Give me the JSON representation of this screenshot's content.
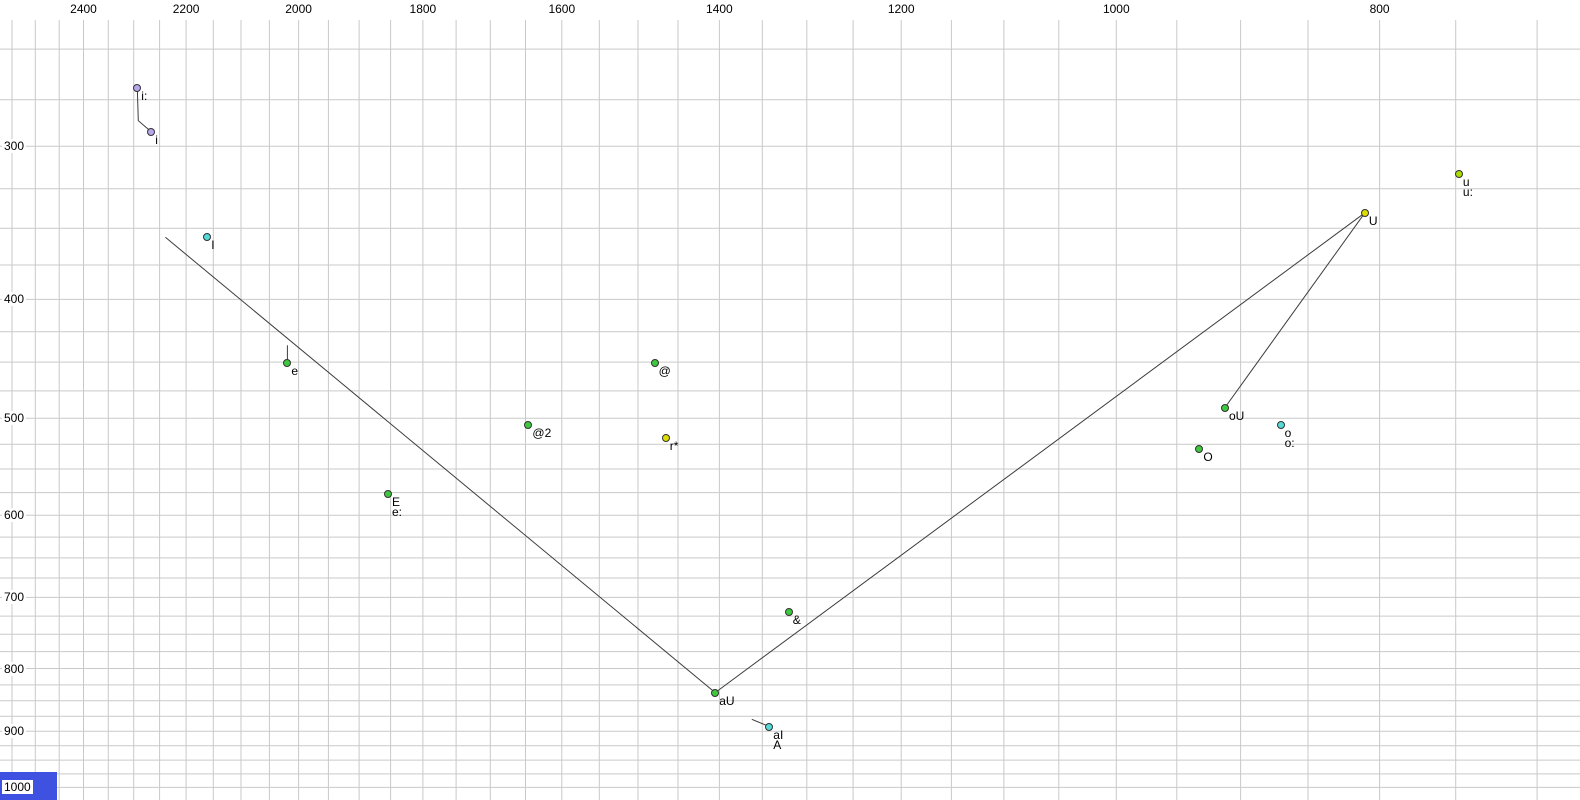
{
  "chart_data": {
    "type": "scatter",
    "title": "",
    "xlabel": "",
    "ylabel": "",
    "x_axis": {
      "position": "top",
      "scale": "log",
      "reversed": true,
      "range_hz": [
        2576,
        675
      ],
      "major_ticks": [
        2400,
        2200,
        2000,
        1800,
        1600,
        1400,
        1200,
        1000,
        800
      ],
      "minor_step": 50,
      "major_step": 200
    },
    "y_axis": {
      "position": "left",
      "scale": "log",
      "range_hz": [
        228,
        1024
      ],
      "major_ticks": [
        300,
        400,
        500,
        600,
        700,
        800,
        900,
        1000
      ],
      "minor_step": 25,
      "major_step": 100
    },
    "palette": {
      "green": "#3ec83e",
      "cyan": "#55dada",
      "yellow": "#dddd00",
      "yellow_green": "#aade00",
      "purple": "#b7a6ec",
      "outline": "#333333"
    },
    "colors": {
      "background": "#ffffff",
      "gridline": "#c9c9c9",
      "trajectory": "#3c3c3c",
      "tick_label": "#000000",
      "selection_bar": "#3f51e0"
    },
    "points": [
      {
        "labels": [
          "i:"
        ],
        "f2": 2293,
        "f1": 269,
        "color": "purple"
      },
      {
        "labels": [
          "i"
        ],
        "f2": 2266,
        "f1": 292,
        "color": "purple"
      },
      {
        "labels": [
          "I"
        ],
        "f2": 2161,
        "f1": 356,
        "color": "cyan"
      },
      {
        "labels": [
          "e"
        ],
        "f2": 2019,
        "f1": 451,
        "color": "green"
      },
      {
        "labels": [
          "@"
        ],
        "f2": 1479,
        "f1": 451,
        "color": "green"
      },
      {
        "labels": [
          "@2"
        ],
        "f2": 1646,
        "f1": 506,
        "color": "green"
      },
      {
        "labels": [
          "r*"
        ],
        "f2": 1465,
        "f1": 519,
        "color": "yellow"
      },
      {
        "labels": [
          "E",
          "e:"
        ],
        "f2": 1854,
        "f1": 576,
        "color": "green"
      },
      {
        "labels": [
          "&"
        ],
        "f2": 1320,
        "f1": 719,
        "color": "green"
      },
      {
        "labels": [
          "aU"
        ],
        "f2": 1405,
        "f1": 837,
        "color": "green"
      },
      {
        "labels": [
          "aI",
          "A"
        ],
        "f2": 1342,
        "f1": 892,
        "color": "cyan"
      },
      {
        "labels": [
          "u",
          "u:"
        ],
        "f2": 748,
        "f1": 316,
        "color": "yellow_green"
      },
      {
        "labels": [
          "U"
        ],
        "f2": 810,
        "f1": 340,
        "color": "yellow"
      },
      {
        "labels": [
          "oU"
        ],
        "f2": 912,
        "f1": 490,
        "color": "green"
      },
      {
        "labels": [
          "o",
          "o:"
        ],
        "f2": 870,
        "f1": 506,
        "color": "cyan"
      },
      {
        "labels": [
          "O"
        ],
        "f2": 932,
        "f1": 530,
        "color": "green"
      }
    ],
    "trajectories": [
      {
        "name": "i-long-to-i-connector",
        "points": [
          [
            2293,
            269
          ],
          [
            2291,
            286
          ],
          [
            2266,
            292
          ]
        ]
      },
      {
        "name": "e-tick",
        "points": [
          [
            2019,
            436
          ],
          [
            2019,
            451
          ]
        ]
      },
      {
        "name": "front-diagonal",
        "points": [
          [
            2239,
            356
          ],
          [
            1405,
            837
          ]
        ]
      },
      {
        "name": "aU-to-U",
        "points": [
          [
            1405,
            837
          ],
          [
            810,
            340
          ]
        ]
      },
      {
        "name": "U-to-oU",
        "points": [
          [
            810,
            340
          ],
          [
            912,
            490
          ]
        ]
      },
      {
        "name": "aI-segment",
        "points": [
          [
            1362,
            880
          ],
          [
            1342,
            892
          ]
        ]
      }
    ],
    "grid": true,
    "legend": false
  }
}
